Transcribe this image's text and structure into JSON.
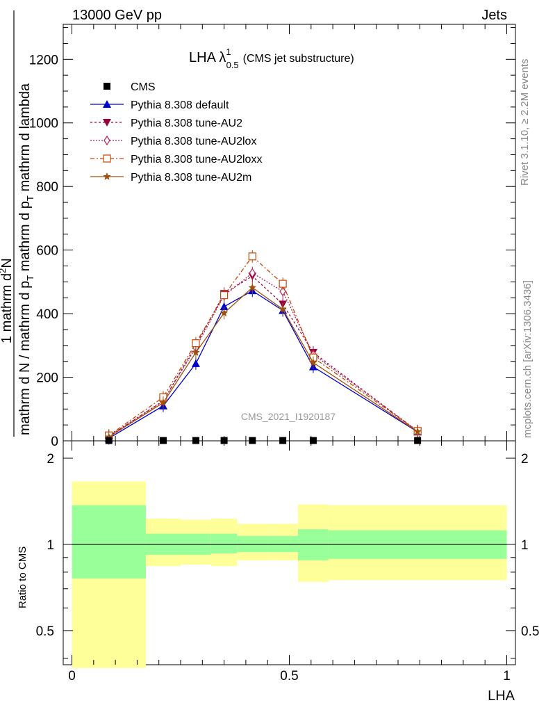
{
  "header": {
    "left": "13000 GeV pp",
    "right": "Jets"
  },
  "plot_title": {
    "main": "LHA λ",
    "sup": "1",
    "sub": "0.5",
    "note": "(CMS jet substructure)"
  },
  "side_texts": {
    "rivet": "Rivet 3.1.10, ≥ 2.2M events",
    "mcplots": "mcplots.cern.ch [arXiv:1306.3436]"
  },
  "watermark": "CMS_2021_I1920187",
  "y_label": {
    "numerator": "1                        mathrm d",
    "numerator_sup": "2",
    "numerator_tail": "N",
    "denominator": "mathrm d N / mathrm d p",
    "denominator_tail": " mathrm d p",
    "denominator_sub": "T",
    "denominator_end": " mathrm d lambda"
  },
  "ratio_ylabel": "Ratio to CMS",
  "xlabel": "LHA",
  "chart_data": [
    {
      "type": "line",
      "panel": "main",
      "xlabel": "LHA",
      "xlim": [
        -0.02,
        1.02
      ],
      "ylim": [
        0,
        1310
      ],
      "x_ticks": [
        "0",
        "0.5",
        "1"
      ],
      "y_ticks": [
        "0",
        "200",
        "400",
        "600",
        "800",
        "1000",
        "1200"
      ],
      "legend_position": "top-left",
      "x": [
        0.085,
        0.21,
        0.285,
        0.35,
        0.415,
        0.485,
        0.555,
        0.795
      ],
      "series": [
        {
          "name": "CMS",
          "marker": "square",
          "color": "#000000",
          "dash": "",
          "values": [
            1,
            1,
            1,
            1,
            1,
            1,
            1,
            1
          ]
        },
        {
          "name": "Pythia 8.308 default",
          "marker": "triangle-up",
          "color": "#0000cc",
          "dash": "",
          "values": [
            8,
            110,
            243,
            422,
            472,
            410,
            233,
            28
          ]
        },
        {
          "name": "Pythia 8.308 tune-AU2",
          "marker": "triangle-down",
          "color": "#99003d",
          "dash": "3,3",
          "values": [
            14,
            125,
            300,
            463,
            518,
            430,
            278,
            30
          ]
        },
        {
          "name": "Pythia 8.308 tune-AU2lox",
          "marker": "diamond",
          "color": "#b0205a",
          "dash": "2,2",
          "values": [
            15,
            126,
            293,
            457,
            528,
            470,
            272,
            31
          ]
        },
        {
          "name": "Pythia 8.308 tune-AU2loxx",
          "marker": "square-open",
          "color": "#cc4400",
          "dash": "6,3,2,3",
          "values": [
            17,
            137,
            307,
            458,
            580,
            494,
            262,
            31
          ]
        },
        {
          "name": "Pythia 8.308 tune-AU2m",
          "marker": "star",
          "color": "#a0500a",
          "dash": "",
          "values": [
            12,
            120,
            278,
            402,
            482,
            414,
            246,
            29
          ]
        }
      ]
    },
    {
      "type": "area",
      "panel": "ratio",
      "ylabel": "Ratio to CMS",
      "xlabel": "LHA",
      "xlim": [
        -0.02,
        1.02
      ],
      "ylim": [
        0.38,
        2.3
      ],
      "y_ticks": [
        "0.5",
        "1",
        "2"
      ],
      "reference_line": 1,
      "bins": [
        {
          "x0": 0.0,
          "x1": 0.17,
          "inner": [
            0.76,
            1.37
          ],
          "outer": [
            0.37,
            1.66
          ]
        },
        {
          "x0": 0.17,
          "x1": 0.25,
          "inner": [
            0.92,
            1.09
          ],
          "outer": [
            0.84,
            1.23
          ]
        },
        {
          "x0": 0.25,
          "x1": 0.32,
          "inner": [
            0.92,
            1.09
          ],
          "outer": [
            0.85,
            1.22
          ]
        },
        {
          "x0": 0.32,
          "x1": 0.38,
          "inner": [
            0.93,
            1.09
          ],
          "outer": [
            0.84,
            1.23
          ]
        },
        {
          "x0": 0.38,
          "x1": 0.45,
          "inner": [
            0.94,
            1.07
          ],
          "outer": [
            0.88,
            1.18
          ]
        },
        {
          "x0": 0.45,
          "x1": 0.52,
          "inner": [
            0.94,
            1.07
          ],
          "outer": [
            0.88,
            1.18
          ]
        },
        {
          "x0": 0.52,
          "x1": 0.59,
          "inner": [
            0.88,
            1.13
          ],
          "outer": [
            0.74,
            1.38
          ]
        },
        {
          "x0": 0.59,
          "x1": 1.0,
          "inner": [
            0.89,
            1.12
          ],
          "outer": [
            0.75,
            1.37
          ]
        }
      ]
    }
  ]
}
